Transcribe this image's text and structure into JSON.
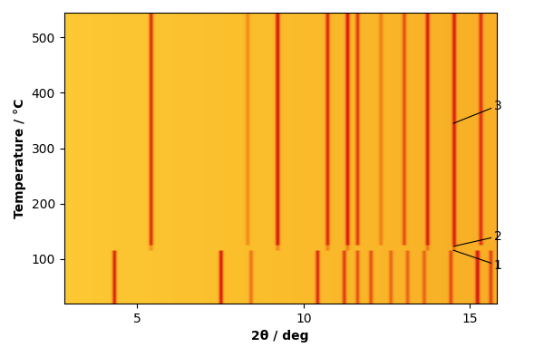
{
  "chart_data": {
    "type": "heatmap",
    "x_label": "2θ / deg",
    "y_label": "Temperature / °C",
    "xlim": [
      2.8,
      15.8
    ],
    "xticks": [
      5,
      10,
      15
    ],
    "ylim": [
      20,
      545
    ],
    "yticks": [
      100,
      200,
      300,
      400,
      500
    ],
    "phases": [
      {
        "label": "1",
        "t_range": [
          20,
          115
        ],
        "label_y": 116,
        "peaks": [
          4.3,
          7.5,
          8.4,
          10.4,
          11.2,
          11.6,
          12.0,
          12.6,
          13.1,
          13.6,
          14.4,
          15.2,
          15.6
        ],
        "intensities": [
          0.8,
          0.8,
          0.4,
          0.7,
          0.6,
          0.5,
          0.5,
          0.4,
          0.4,
          0.4,
          0.5,
          0.8,
          0.5
        ]
      },
      {
        "label": "2",
        "t_range": [
          115,
          125
        ],
        "label_y": 123,
        "peaks": [
          5.4,
          9.2,
          10.7,
          11.3,
          13.7,
          14.5
        ],
        "intensities": [
          0.3,
          0.3,
          0.3,
          0.3,
          0.3,
          0.3
        ]
      },
      {
        "label": "3",
        "t_range": [
          125,
          545
        ],
        "label_y": 345,
        "peaks": [
          5.4,
          8.3,
          9.2,
          10.7,
          11.3,
          11.6,
          12.3,
          13.0,
          13.7,
          14.5,
          15.3
        ],
        "intensities": [
          0.75,
          0.3,
          0.85,
          0.7,
          0.8,
          0.6,
          0.3,
          0.5,
          0.7,
          0.7,
          0.6
        ]
      }
    ]
  }
}
